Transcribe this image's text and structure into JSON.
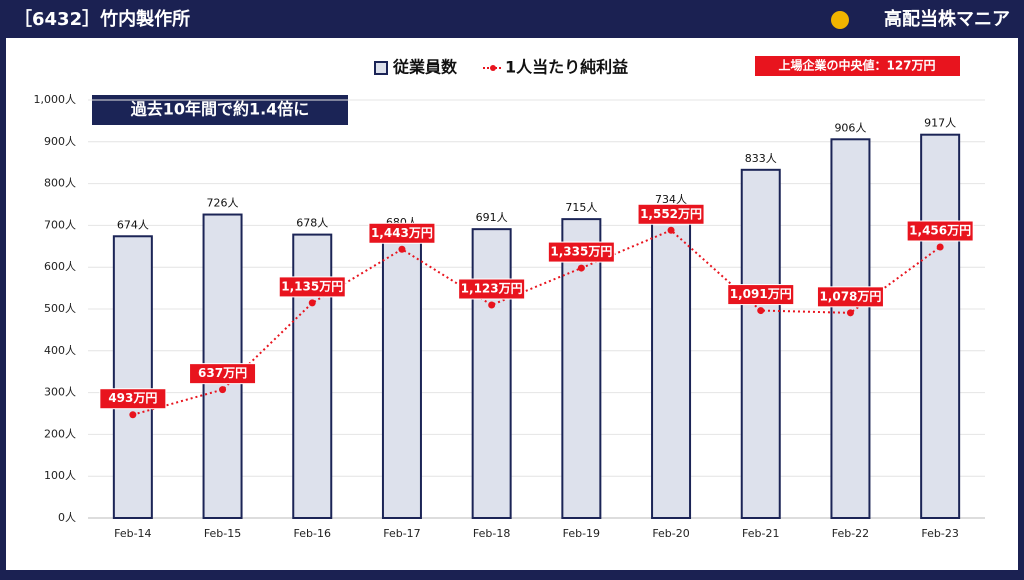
{
  "header": {
    "title": "［6432］竹内製作所",
    "brand": "高配当株マニア"
  },
  "chart_data": {
    "type": "bar-line",
    "annotation": "上場企業の中央値：127万円",
    "callout": "過去10年間で約1.4倍に",
    "categories": [
      "Feb-14",
      "Feb-15",
      "Feb-16",
      "Feb-17",
      "Feb-18",
      "Feb-19",
      "Feb-20",
      "Feb-21",
      "Feb-22",
      "Feb-23"
    ],
    "series": [
      {
        "name": "従業員数",
        "type": "bar",
        "color": "#dde1ec",
        "edge": "#1b2456",
        "values": [
          674,
          726,
          678,
          680,
          691,
          715,
          734,
          833,
          906,
          917
        ],
        "value_labels": [
          "674人",
          "726人",
          "678人",
          "680人",
          "691人",
          "715人",
          "734人",
          "833人",
          "906人",
          "917人"
        ]
      },
      {
        "name": "1人当たり純利益",
        "type": "line",
        "axis": "y2",
        "color": "#e8141e",
        "values": [
          493,
          637,
          1135,
          1443,
          1123,
          1335,
          1552,
          1091,
          1078,
          1456
        ],
        "value_labels": [
          "493万円",
          "637万円",
          "1,135万円",
          "1,443万円",
          "1,123万円",
          "1,335万円",
          "1,552万円",
          "1,091万円",
          "1,078万円",
          "1,456万円"
        ]
      }
    ],
    "ylim": [
      0,
      1000
    ],
    "yticks": [
      {
        "value": 0,
        "label": "0人"
      },
      {
        "value": 100,
        "label": "100人"
      },
      {
        "value": 200,
        "label": "200人"
      },
      {
        "value": 300,
        "label": "300人"
      },
      {
        "value": 400,
        "label": "400人"
      },
      {
        "value": 500,
        "label": "500人"
      },
      {
        "value": 600,
        "label": "600人"
      },
      {
        "value": 700,
        "label": "700人"
      },
      {
        "value": 800,
        "label": "800人"
      },
      {
        "value": 900,
        "label": "900人"
      },
      {
        "value": 1000,
        "label": "1,000人"
      }
    ],
    "y2lim": [
      -100,
      2300
    ],
    "grid": true
  }
}
